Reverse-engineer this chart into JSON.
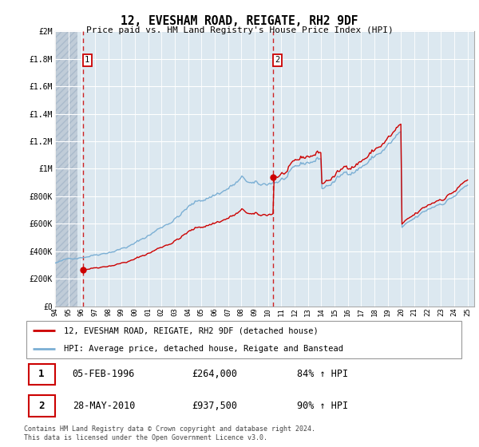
{
  "title": "12, EVESHAM ROAD, REIGATE, RH2 9DF",
  "subtitle": "Price paid vs. HM Land Registry's House Price Index (HPI)",
  "xlim": [
    1994,
    2025.5
  ],
  "ylim": [
    0,
    2000000
  ],
  "yticks": [
    0,
    200000,
    400000,
    600000,
    800000,
    1000000,
    1200000,
    1400000,
    1600000,
    1800000,
    2000000
  ],
  "ytick_labels": [
    "£0",
    "£200K",
    "£400K",
    "£600K",
    "£800K",
    "£1M",
    "£1.2M",
    "£1.4M",
    "£1.6M",
    "£1.8M",
    "£2M"
  ],
  "xticks": [
    1994,
    1995,
    1996,
    1997,
    1998,
    1999,
    2000,
    2001,
    2002,
    2003,
    2004,
    2005,
    2006,
    2007,
    2008,
    2009,
    2010,
    2011,
    2012,
    2013,
    2014,
    2015,
    2016,
    2017,
    2018,
    2019,
    2020,
    2021,
    2022,
    2023,
    2024,
    2025
  ],
  "purchase1_date": 1996.08,
  "purchase1_price": 264000,
  "purchase2_date": 2010.38,
  "purchase2_price": 937500,
  "legend_entries": [
    "12, EVESHAM ROAD, REIGATE, RH2 9DF (detached house)",
    "HPI: Average price, detached house, Reigate and Banstead"
  ],
  "annotation1": {
    "num": "1",
    "date_str": "05-FEB-1996",
    "price_str": "£264,000",
    "hpi_str": "84% ↑ HPI"
  },
  "annotation2": {
    "num": "2",
    "date_str": "28-MAY-2010",
    "price_str": "£937,500",
    "hpi_str": "90% ↑ HPI"
  },
  "footer": "Contains HM Land Registry data © Crown copyright and database right 2024.\nThis data is licensed under the Open Government Licence v3.0.",
  "line_color_red": "#cc0000",
  "line_color_blue": "#7bafd4",
  "grid_color": "#c8d4e0",
  "dashed_line_color": "#cc0000",
  "bg_color": "#dce8f0",
  "hatch_color": "#c0ccd8"
}
